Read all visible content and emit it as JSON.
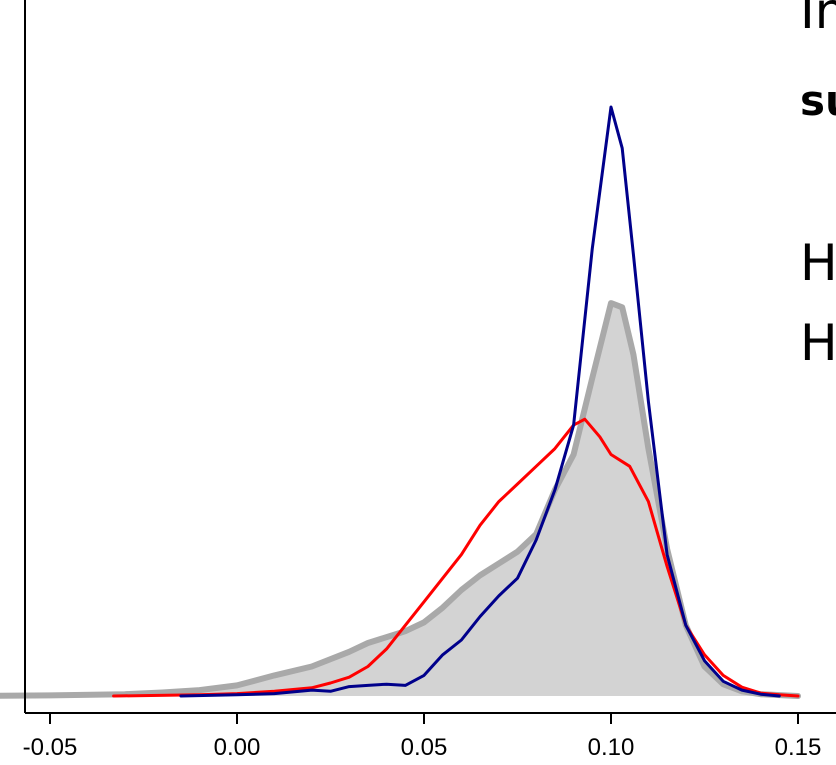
{
  "chart_data": {
    "type": "area",
    "xlabel": "",
    "ylabel": "",
    "xlim": [
      -0.05,
      0.15
    ],
    "ylim": [
      0,
      1
    ],
    "x_ticks": [
      "-0.05",
      "0.00",
      "0.05",
      "0.10",
      "0.15"
    ],
    "x_tick_values": [
      -0.05,
      0.0,
      0.05,
      0.1,
      0.15
    ],
    "grid": false,
    "series": [
      {
        "color": "#a9a9a9",
        "fill": "#d3d3d3",
        "style": "filled-area",
        "points": [
          [
            -0.07,
            0.0
          ],
          [
            -0.05,
            0.001
          ],
          [
            -0.03,
            0.003
          ],
          [
            -0.02,
            0.006
          ],
          [
            -0.01,
            0.01
          ],
          [
            0.0,
            0.018
          ],
          [
            0.01,
            0.035
          ],
          [
            0.02,
            0.05
          ],
          [
            0.03,
            0.075
          ],
          [
            0.035,
            0.09
          ],
          [
            0.04,
            0.1
          ],
          [
            0.045,
            0.11
          ],
          [
            0.05,
            0.125
          ],
          [
            0.055,
            0.15
          ],
          [
            0.06,
            0.18
          ],
          [
            0.065,
            0.205
          ],
          [
            0.07,
            0.225
          ],
          [
            0.075,
            0.245
          ],
          [
            0.08,
            0.275
          ],
          [
            0.085,
            0.35
          ],
          [
            0.09,
            0.41
          ],
          [
            0.095,
            0.54
          ],
          [
            0.1,
            0.667
          ],
          [
            0.103,
            0.66
          ],
          [
            0.106,
            0.58
          ],
          [
            0.11,
            0.42
          ],
          [
            0.115,
            0.25
          ],
          [
            0.12,
            0.12
          ],
          [
            0.125,
            0.05
          ],
          [
            0.13,
            0.02
          ],
          [
            0.135,
            0.008
          ],
          [
            0.14,
            0.003
          ],
          [
            0.15,
            0.0
          ]
        ]
      },
      {
        "color": "#ff0000",
        "style": "line",
        "points": [
          [
            -0.033,
            0.0
          ],
          [
            -0.01,
            0.002
          ],
          [
            0.0,
            0.004
          ],
          [
            0.01,
            0.008
          ],
          [
            0.02,
            0.014
          ],
          [
            0.025,
            0.022
          ],
          [
            0.03,
            0.032
          ],
          [
            0.035,
            0.05
          ],
          [
            0.04,
            0.08
          ],
          [
            0.045,
            0.12
          ],
          [
            0.05,
            0.16
          ],
          [
            0.055,
            0.2
          ],
          [
            0.06,
            0.24
          ],
          [
            0.065,
            0.29
          ],
          [
            0.07,
            0.33
          ],
          [
            0.075,
            0.36
          ],
          [
            0.08,
            0.39
          ],
          [
            0.085,
            0.42
          ],
          [
            0.09,
            0.46
          ],
          [
            0.093,
            0.47
          ],
          [
            0.097,
            0.44
          ],
          [
            0.1,
            0.41
          ],
          [
            0.105,
            0.39
          ],
          [
            0.11,
            0.33
          ],
          [
            0.115,
            0.22
          ],
          [
            0.12,
            0.12
          ],
          [
            0.125,
            0.07
          ],
          [
            0.13,
            0.035
          ],
          [
            0.135,
            0.015
          ],
          [
            0.14,
            0.005
          ],
          [
            0.145,
            0.002
          ],
          [
            0.15,
            0.0
          ]
        ]
      },
      {
        "color": "#00008b",
        "style": "line",
        "points": [
          [
            -0.015,
            0.0
          ],
          [
            0.0,
            0.002
          ],
          [
            0.01,
            0.004
          ],
          [
            0.02,
            0.01
          ],
          [
            0.025,
            0.008
          ],
          [
            0.03,
            0.016
          ],
          [
            0.035,
            0.018
          ],
          [
            0.04,
            0.02
          ],
          [
            0.045,
            0.018
          ],
          [
            0.05,
            0.035
          ],
          [
            0.055,
            0.07
          ],
          [
            0.06,
            0.095
          ],
          [
            0.065,
            0.135
          ],
          [
            0.07,
            0.17
          ],
          [
            0.075,
            0.2
          ],
          [
            0.08,
            0.265
          ],
          [
            0.085,
            0.35
          ],
          [
            0.09,
            0.46
          ],
          [
            0.095,
            0.76
          ],
          [
            0.1,
            1.0
          ],
          [
            0.103,
            0.93
          ],
          [
            0.106,
            0.75
          ],
          [
            0.11,
            0.5
          ],
          [
            0.115,
            0.24
          ],
          [
            0.12,
            0.12
          ],
          [
            0.125,
            0.06
          ],
          [
            0.13,
            0.025
          ],
          [
            0.135,
            0.01
          ],
          [
            0.14,
            0.003
          ],
          [
            0.145,
            0.0
          ]
        ]
      }
    ]
  },
  "side_text": {
    "line1": "In",
    "line2": "su",
    "line3": "H",
    "line4": "H"
  }
}
